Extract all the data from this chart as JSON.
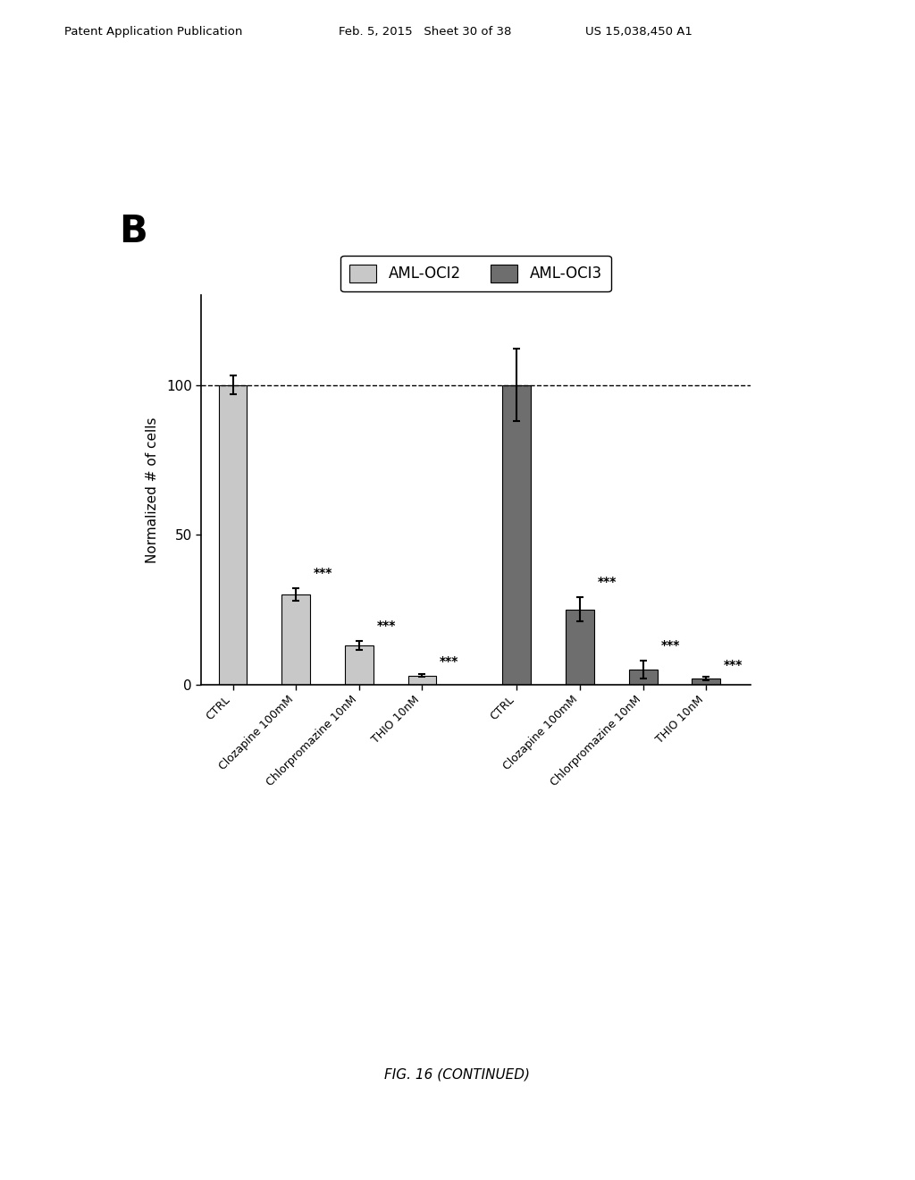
{
  "title_panel": "B",
  "ylabel": "Normalized # of cells",
  "ylim": [
    0,
    130
  ],
  "yticks": [
    0,
    50,
    100
  ],
  "dashed_line_y": 100,
  "groups": [
    "AML-OCI2",
    "AML-OCI3"
  ],
  "categories": [
    "CTRL",
    "Clozapine 100mM",
    "Chlorpromazine 10nM",
    "THIO 10nM"
  ],
  "values_oci2": [
    100,
    30,
    13,
    3
  ],
  "values_oci3": [
    100,
    25,
    5,
    2
  ],
  "errors_oci2": [
    3,
    2,
    1.5,
    0.5
  ],
  "errors_oci3": [
    12,
    4,
    3,
    0.5
  ],
  "color_oci2": "#c8c8c8",
  "color_oci3": "#6e6e6e",
  "bar_width": 0.45,
  "significance": [
    "***",
    "***",
    "***"
  ],
  "fig_caption": "FIG. 16 (CONTINUED)",
  "header_left": "Patent Application Publication",
  "header_mid": "Feb. 5, 2015   Sheet 30 of 38",
  "header_right": "US 15,038,450 A1",
  "background_color": "#ffffff",
  "legend_oci2_color": "#c8c8c8",
  "legend_oci3_color": "#6e6e6e"
}
